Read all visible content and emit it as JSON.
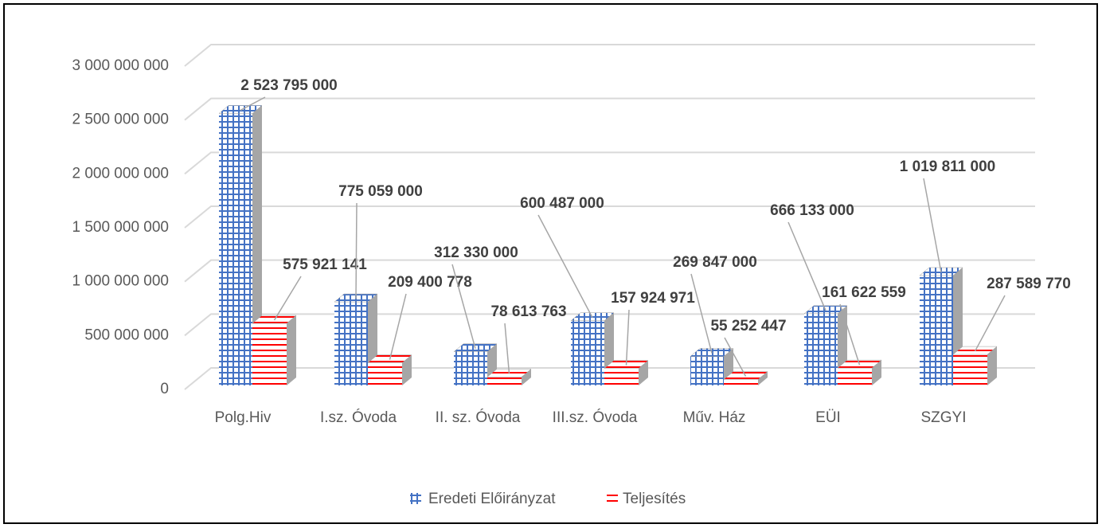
{
  "chart_data": {
    "type": "bar3d",
    "categories": [
      "Polg.Hiv",
      "I.sz. Óvoda",
      "II. sz. Óvoda",
      "III.sz. Óvoda",
      "Műv. Ház",
      "EÜI",
      "SZGYI"
    ],
    "series": [
      {
        "name": "Eredeti Előirányzat",
        "color": "#4472c4",
        "values": [
          2523795000,
          775059000,
          312330000,
          600487000,
          269847000,
          666133000,
          1019811000
        ],
        "value_labels": [
          "2 523 795 000",
          "775 059 000",
          "312 330 000",
          "600 487 000",
          "269 847 000",
          "666 133 000",
          "1 019 811 000"
        ]
      },
      {
        "name": "Teljesítés",
        "color": "#ff0000",
        "values": [
          575921141,
          209400778,
          78613763,
          157924971,
          55252447,
          161622559,
          287589770
        ],
        "value_labels": [
          "575 921 141",
          "209 400 778",
          "78 613 763",
          "157 924 971",
          "55 252 447",
          "161 622 559",
          "287 589 770"
        ]
      }
    ],
    "ylim": [
      0,
      3000000000
    ],
    "yticks": [
      0,
      {
        "value": 500000000,
        "label": "500 000 000"
      },
      {
        "value": 1000000000,
        "label": "1 000 000 000"
      },
      {
        "value": 1500000000,
        "label": "1 500 000 000"
      },
      {
        "value": 2000000000,
        "label": "2 000 000 000"
      },
      {
        "value": 2500000000,
        "label": "2 500 000 000"
      },
      {
        "value": 3000000000,
        "label": "3 000 000 000"
      }
    ],
    "grid": true,
    "legend": "bottom"
  }
}
